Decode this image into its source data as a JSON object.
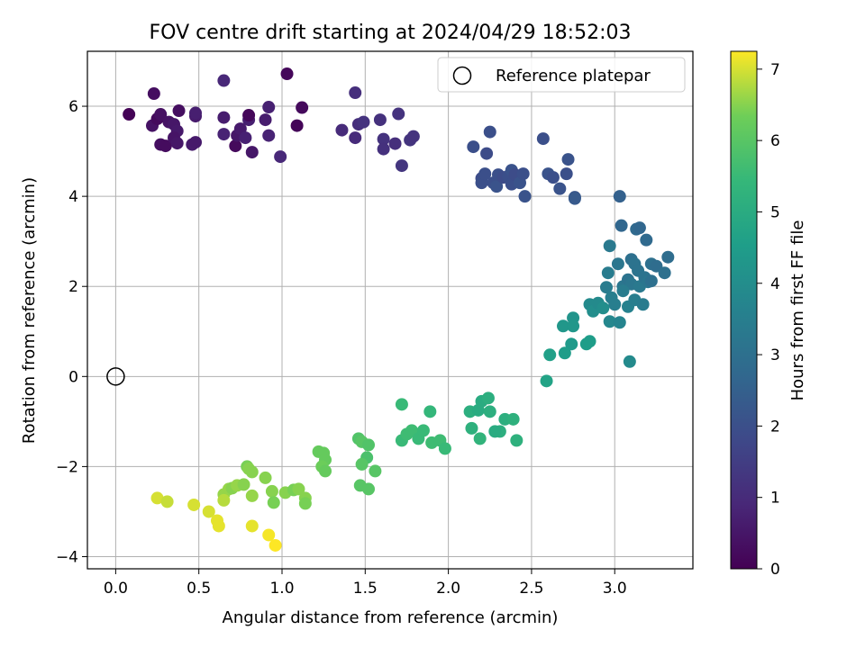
{
  "chart_data": {
    "type": "scatter",
    "title": "FOV centre drift starting at 2024/04/29 18:52:03",
    "xlabel": "Angular distance from reference (arcmin)",
    "ylabel": "Rotation from reference (arcmin)",
    "xlim": [
      -0.17,
      3.47
    ],
    "ylim": [
      -4.27,
      7.22
    ],
    "xticks": [
      0.0,
      0.5,
      1.0,
      1.5,
      2.0,
      2.5,
      3.0
    ],
    "xtick_labels": [
      "0.0",
      "0.5",
      "1.0",
      "1.5",
      "2.0",
      "2.5",
      "3.0"
    ],
    "yticks": [
      -4,
      -2,
      0,
      2,
      4,
      6
    ],
    "ytick_labels": [
      "−4",
      "−2",
      "0",
      "2",
      "4",
      "6"
    ],
    "grid": true,
    "legend": {
      "position": "top-right",
      "entries": [
        "Reference platepar"
      ]
    },
    "reference_point": {
      "name": "Reference platepar",
      "x": 0.0,
      "y": 0.0
    },
    "colorbar": {
      "label": "Hours from first FF file",
      "colormap": "viridis",
      "range": [
        0,
        7.25
      ],
      "ticks": [
        0,
        1,
        2,
        3,
        4,
        5,
        6,
        7
      ],
      "tick_labels": [
        "0",
        "1",
        "2",
        "3",
        "4",
        "5",
        "6",
        "7"
      ]
    },
    "points": [
      {
        "x": 0.08,
        "y": 5.82,
        "c": 0.05
      },
      {
        "x": 0.23,
        "y": 6.28,
        "c": 0.3
      },
      {
        "x": 0.22,
        "y": 5.57,
        "c": 0.4
      },
      {
        "x": 0.25,
        "y": 5.72,
        "c": 0.2
      },
      {
        "x": 0.27,
        "y": 5.82,
        "c": 0.35
      },
      {
        "x": 0.32,
        "y": 5.65,
        "c": 0.4
      },
      {
        "x": 0.35,
        "y": 5.6,
        "c": 0.5
      },
      {
        "x": 0.37,
        "y": 5.45,
        "c": 0.55
      },
      {
        "x": 0.27,
        "y": 5.15,
        "c": 0.3
      },
      {
        "x": 0.3,
        "y": 5.12,
        "c": 0.25
      },
      {
        "x": 0.35,
        "y": 5.3,
        "c": 0.45
      },
      {
        "x": 0.37,
        "y": 5.18,
        "c": 0.5
      },
      {
        "x": 0.38,
        "y": 5.9,
        "c": 0.3
      },
      {
        "x": 0.46,
        "y": 5.15,
        "c": 0.6
      },
      {
        "x": 0.48,
        "y": 5.2,
        "c": 0.55
      },
      {
        "x": 0.48,
        "y": 5.78,
        "c": 0.6
      },
      {
        "x": 0.48,
        "y": 5.85,
        "c": 0.7
      },
      {
        "x": 0.65,
        "y": 6.57,
        "c": 0.9
      },
      {
        "x": 0.65,
        "y": 5.75,
        "c": 0.65
      },
      {
        "x": 0.65,
        "y": 5.38,
        "c": 0.8
      },
      {
        "x": 0.72,
        "y": 5.12,
        "c": 0.2
      },
      {
        "x": 0.73,
        "y": 5.35,
        "c": 0.5
      },
      {
        "x": 0.75,
        "y": 5.5,
        "c": 0.6
      },
      {
        "x": 0.78,
        "y": 5.3,
        "c": 0.75
      },
      {
        "x": 0.8,
        "y": 5.7,
        "c": 0.7
      },
      {
        "x": 0.8,
        "y": 5.8,
        "c": 0.15
      },
      {
        "x": 0.82,
        "y": 4.98,
        "c": 0.5
      },
      {
        "x": 0.9,
        "y": 5.7,
        "c": 0.65
      },
      {
        "x": 0.92,
        "y": 5.35,
        "c": 0.8
      },
      {
        "x": 0.92,
        "y": 5.98,
        "c": 0.75
      },
      {
        "x": 0.99,
        "y": 4.88,
        "c": 0.9
      },
      {
        "x": 1.03,
        "y": 6.72,
        "c": 0.15
      },
      {
        "x": 1.09,
        "y": 5.57,
        "c": 0.1
      },
      {
        "x": 1.12,
        "y": 5.97,
        "c": 0.2
      },
      {
        "x": 1.36,
        "y": 5.47,
        "c": 1.0
      },
      {
        "x": 1.44,
        "y": 6.3,
        "c": 1.1
      },
      {
        "x": 1.44,
        "y": 5.3,
        "c": 1.0
      },
      {
        "x": 1.46,
        "y": 5.6,
        "c": 1.1
      },
      {
        "x": 1.49,
        "y": 5.65,
        "c": 1.2
      },
      {
        "x": 1.59,
        "y": 5.7,
        "c": 1.15
      },
      {
        "x": 1.61,
        "y": 5.27,
        "c": 1.2
      },
      {
        "x": 1.61,
        "y": 5.05,
        "c": 1.15
      },
      {
        "x": 1.68,
        "y": 5.17,
        "c": 1.1
      },
      {
        "x": 1.7,
        "y": 5.83,
        "c": 1.2
      },
      {
        "x": 1.72,
        "y": 4.68,
        "c": 1.3
      },
      {
        "x": 1.77,
        "y": 5.25,
        "c": 1.25
      },
      {
        "x": 1.79,
        "y": 5.33,
        "c": 1.2
      },
      {
        "x": 2.15,
        "y": 5.1,
        "c": 2.0
      },
      {
        "x": 2.2,
        "y": 4.4,
        "c": 1.9
      },
      {
        "x": 2.2,
        "y": 4.3,
        "c": 2.0
      },
      {
        "x": 2.22,
        "y": 4.5,
        "c": 2.0
      },
      {
        "x": 2.23,
        "y": 4.95,
        "c": 1.9
      },
      {
        "x": 2.25,
        "y": 5.43,
        "c": 2.0
      },
      {
        "x": 2.27,
        "y": 4.3,
        "c": 2.0
      },
      {
        "x": 2.29,
        "y": 4.22,
        "c": 2.1
      },
      {
        "x": 2.3,
        "y": 4.48,
        "c": 2.0
      },
      {
        "x": 2.33,
        "y": 4.42,
        "c": 1.9
      },
      {
        "x": 2.36,
        "y": 4.45,
        "c": 2.0
      },
      {
        "x": 2.38,
        "y": 4.58,
        "c": 2.1
      },
      {
        "x": 2.38,
        "y": 4.27,
        "c": 2.0
      },
      {
        "x": 2.4,
        "y": 4.48,
        "c": 1.9
      },
      {
        "x": 2.43,
        "y": 4.3,
        "c": 2.1
      },
      {
        "x": 2.45,
        "y": 4.5,
        "c": 2.0
      },
      {
        "x": 2.46,
        "y": 4.0,
        "c": 2.1
      },
      {
        "x": 2.57,
        "y": 5.28,
        "c": 2.0
      },
      {
        "x": 2.6,
        "y": 4.5,
        "c": 2.1
      },
      {
        "x": 2.63,
        "y": 4.42,
        "c": 2.0
      },
      {
        "x": 2.67,
        "y": 4.17,
        "c": 2.1
      },
      {
        "x": 2.71,
        "y": 4.5,
        "c": 2.0
      },
      {
        "x": 2.72,
        "y": 4.82,
        "c": 2.1
      },
      {
        "x": 2.76,
        "y": 3.98,
        "c": 2.2
      },
      {
        "x": 2.76,
        "y": 3.95,
        "c": 2.3
      },
      {
        "x": 3.03,
        "y": 4.0,
        "c": 2.5
      },
      {
        "x": 3.04,
        "y": 3.35,
        "c": 2.7
      },
      {
        "x": 3.13,
        "y": 3.27,
        "c": 2.8
      },
      {
        "x": 3.15,
        "y": 3.3,
        "c": 2.7
      },
      {
        "x": 3.19,
        "y": 3.03,
        "c": 2.8
      },
      {
        "x": 2.97,
        "y": 2.9,
        "c": 3.3
      },
      {
        "x": 2.96,
        "y": 2.3,
        "c": 3.4
      },
      {
        "x": 3.02,
        "y": 2.5,
        "c": 3.2
      },
      {
        "x": 3.1,
        "y": 2.6,
        "c": 3.0
      },
      {
        "x": 3.12,
        "y": 2.5,
        "c": 3.1
      },
      {
        "x": 3.14,
        "y": 2.35,
        "c": 3.1
      },
      {
        "x": 3.22,
        "y": 2.5,
        "c": 3.0
      },
      {
        "x": 3.25,
        "y": 2.45,
        "c": 2.9
      },
      {
        "x": 3.3,
        "y": 2.3,
        "c": 3.0
      },
      {
        "x": 3.32,
        "y": 2.65,
        "c": 2.9
      },
      {
        "x": 3.05,
        "y": 2.0,
        "c": 3.2
      },
      {
        "x": 3.08,
        "y": 2.15,
        "c": 3.1
      },
      {
        "x": 3.1,
        "y": 2.05,
        "c": 3.2
      },
      {
        "x": 3.15,
        "y": 2.0,
        "c": 3.3
      },
      {
        "x": 3.18,
        "y": 2.2,
        "c": 3.1
      },
      {
        "x": 3.2,
        "y": 2.1,
        "c": 3.2
      },
      {
        "x": 3.22,
        "y": 2.12,
        "c": 3.0
      },
      {
        "x": 2.95,
        "y": 1.98,
        "c": 3.4
      },
      {
        "x": 2.98,
        "y": 1.75,
        "c": 3.5
      },
      {
        "x": 3.0,
        "y": 1.6,
        "c": 3.5
      },
      {
        "x": 3.05,
        "y": 1.9,
        "c": 3.4
      },
      {
        "x": 3.08,
        "y": 1.55,
        "c": 3.6
      },
      {
        "x": 3.12,
        "y": 1.7,
        "c": 3.5
      },
      {
        "x": 3.17,
        "y": 1.6,
        "c": 3.4
      },
      {
        "x": 2.97,
        "y": 1.22,
        "c": 3.8
      },
      {
        "x": 3.03,
        "y": 1.2,
        "c": 3.7
      },
      {
        "x": 3.09,
        "y": 0.33,
        "c": 3.9
      },
      {
        "x": 2.85,
        "y": 1.6,
        "c": 3.9
      },
      {
        "x": 2.87,
        "y": 1.45,
        "c": 4.0
      },
      {
        "x": 2.9,
        "y": 1.63,
        "c": 3.9
      },
      {
        "x": 2.93,
        "y": 1.52,
        "c": 4.0
      },
      {
        "x": 2.75,
        "y": 1.3,
        "c": 4.2
      },
      {
        "x": 2.69,
        "y": 1.12,
        "c": 4.3
      },
      {
        "x": 2.75,
        "y": 1.12,
        "c": 4.3
      },
      {
        "x": 2.74,
        "y": 0.72,
        "c": 4.4
      },
      {
        "x": 2.7,
        "y": 0.52,
        "c": 4.5
      },
      {
        "x": 2.83,
        "y": 0.72,
        "c": 4.5
      },
      {
        "x": 2.85,
        "y": 0.78,
        "c": 4.5
      },
      {
        "x": 2.61,
        "y": 0.48,
        "c": 4.6
      },
      {
        "x": 2.59,
        "y": -0.1,
        "c": 4.7
      },
      {
        "x": 2.13,
        "y": -0.78,
        "c": 5.1
      },
      {
        "x": 2.18,
        "y": -0.75,
        "c": 5.0
      },
      {
        "x": 2.2,
        "y": -0.55,
        "c": 5.0
      },
      {
        "x": 2.24,
        "y": -0.48,
        "c": 5.1
      },
      {
        "x": 2.25,
        "y": -0.78,
        "c": 5.1
      },
      {
        "x": 2.31,
        "y": -1.22,
        "c": 5.1
      },
      {
        "x": 2.28,
        "y": -1.22,
        "c": 5.0
      },
      {
        "x": 2.34,
        "y": -0.95,
        "c": 5.1
      },
      {
        "x": 2.39,
        "y": -0.95,
        "c": 5.2
      },
      {
        "x": 2.41,
        "y": -1.42,
        "c": 5.2
      },
      {
        "x": 2.14,
        "y": -1.15,
        "c": 5.2
      },
      {
        "x": 2.19,
        "y": -1.38,
        "c": 5.3
      },
      {
        "x": 1.89,
        "y": -0.78,
        "c": 5.4
      },
      {
        "x": 1.72,
        "y": -0.62,
        "c": 5.5
      },
      {
        "x": 1.72,
        "y": -1.42,
        "c": 5.5
      },
      {
        "x": 1.75,
        "y": -1.28,
        "c": 5.6
      },
      {
        "x": 1.78,
        "y": -1.2,
        "c": 5.6
      },
      {
        "x": 1.82,
        "y": -1.38,
        "c": 5.5
      },
      {
        "x": 1.85,
        "y": -1.2,
        "c": 5.5
      },
      {
        "x": 1.9,
        "y": -1.47,
        "c": 5.6
      },
      {
        "x": 1.95,
        "y": -1.42,
        "c": 5.6
      },
      {
        "x": 1.98,
        "y": -1.6,
        "c": 5.5
      },
      {
        "x": 1.46,
        "y": -1.38,
        "c": 5.9
      },
      {
        "x": 1.48,
        "y": -1.45,
        "c": 6.0
      },
      {
        "x": 1.52,
        "y": -1.52,
        "c": 5.9
      },
      {
        "x": 1.51,
        "y": -1.8,
        "c": 5.8
      },
      {
        "x": 1.48,
        "y": -1.95,
        "c": 6.0
      },
      {
        "x": 1.56,
        "y": -2.1,
        "c": 6.0
      },
      {
        "x": 1.47,
        "y": -2.42,
        "c": 6.0
      },
      {
        "x": 1.52,
        "y": -2.5,
        "c": 6.0
      },
      {
        "x": 1.22,
        "y": -1.67,
        "c": 6.2
      },
      {
        "x": 1.25,
        "y": -1.7,
        "c": 6.2
      },
      {
        "x": 1.26,
        "y": -1.85,
        "c": 6.2
      },
      {
        "x": 1.24,
        "y": -2.0,
        "c": 6.3
      },
      {
        "x": 1.26,
        "y": -2.1,
        "c": 6.2
      },
      {
        "x": 0.79,
        "y": -2.0,
        "c": 6.4
      },
      {
        "x": 0.8,
        "y": -2.05,
        "c": 6.5
      },
      {
        "x": 0.82,
        "y": -2.12,
        "c": 6.5
      },
      {
        "x": 0.9,
        "y": -2.25,
        "c": 6.5
      },
      {
        "x": 0.94,
        "y": -2.55,
        "c": 6.5
      },
      {
        "x": 0.95,
        "y": -2.8,
        "c": 6.4
      },
      {
        "x": 1.02,
        "y": -2.58,
        "c": 6.5
      },
      {
        "x": 1.07,
        "y": -2.52,
        "c": 6.4
      },
      {
        "x": 1.1,
        "y": -2.5,
        "c": 6.5
      },
      {
        "x": 1.14,
        "y": -2.7,
        "c": 6.5
      },
      {
        "x": 1.14,
        "y": -2.82,
        "c": 6.4
      },
      {
        "x": 0.65,
        "y": -2.62,
        "c": 6.6
      },
      {
        "x": 0.68,
        "y": -2.5,
        "c": 6.6
      },
      {
        "x": 0.7,
        "y": -2.48,
        "c": 6.5
      },
      {
        "x": 0.73,
        "y": -2.42,
        "c": 6.6
      },
      {
        "x": 0.77,
        "y": -2.4,
        "c": 6.5
      },
      {
        "x": 0.82,
        "y": -2.65,
        "c": 6.6
      },
      {
        "x": 0.65,
        "y": -2.75,
        "c": 6.8
      },
      {
        "x": 0.25,
        "y": -2.7,
        "c": 7.0
      },
      {
        "x": 0.31,
        "y": -2.78,
        "c": 6.9
      },
      {
        "x": 0.47,
        "y": -2.85,
        "c": 7.0
      },
      {
        "x": 0.56,
        "y": -3.0,
        "c": 7.0
      },
      {
        "x": 0.61,
        "y": -3.2,
        "c": 7.1
      },
      {
        "x": 0.62,
        "y": -3.32,
        "c": 7.1
      },
      {
        "x": 0.82,
        "y": -3.32,
        "c": 7.1
      },
      {
        "x": 0.92,
        "y": -3.52,
        "c": 7.2
      },
      {
        "x": 0.96,
        "y": -3.75,
        "c": 7.25
      }
    ]
  }
}
